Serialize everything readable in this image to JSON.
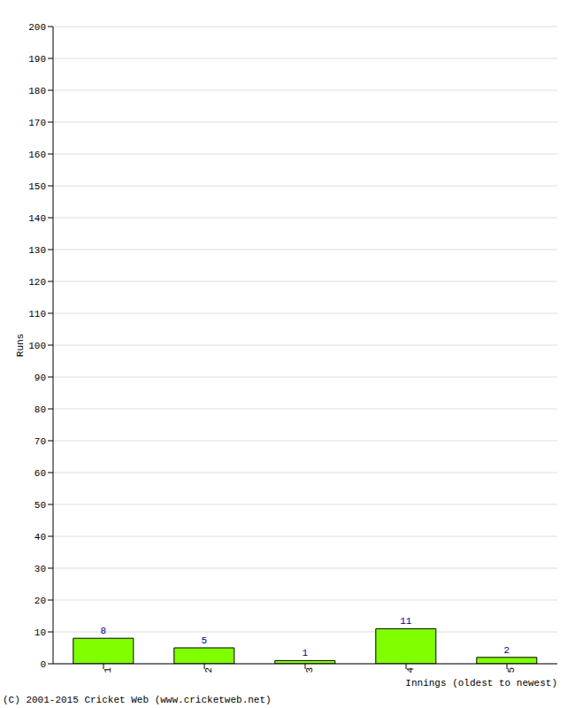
{
  "chart_data": {
    "type": "bar",
    "categories": [
      "1",
      "2",
      "3",
      "4",
      "5"
    ],
    "values": [
      8,
      5,
      1,
      11,
      2
    ],
    "color": "#80ff00",
    "xlabel": "Innings (oldest to newest)",
    "ylabel": "Runs",
    "ylim": [
      0,
      200
    ],
    "yticks": [
      0,
      10,
      20,
      30,
      40,
      50,
      60,
      70,
      80,
      90,
      100,
      110,
      120,
      130,
      140,
      150,
      160,
      170,
      180,
      190,
      200
    ],
    "grid": true,
    "data_labels": true,
    "annotation": "(C) 2001-2015 Cricket Web (www.cricketweb.net)"
  }
}
